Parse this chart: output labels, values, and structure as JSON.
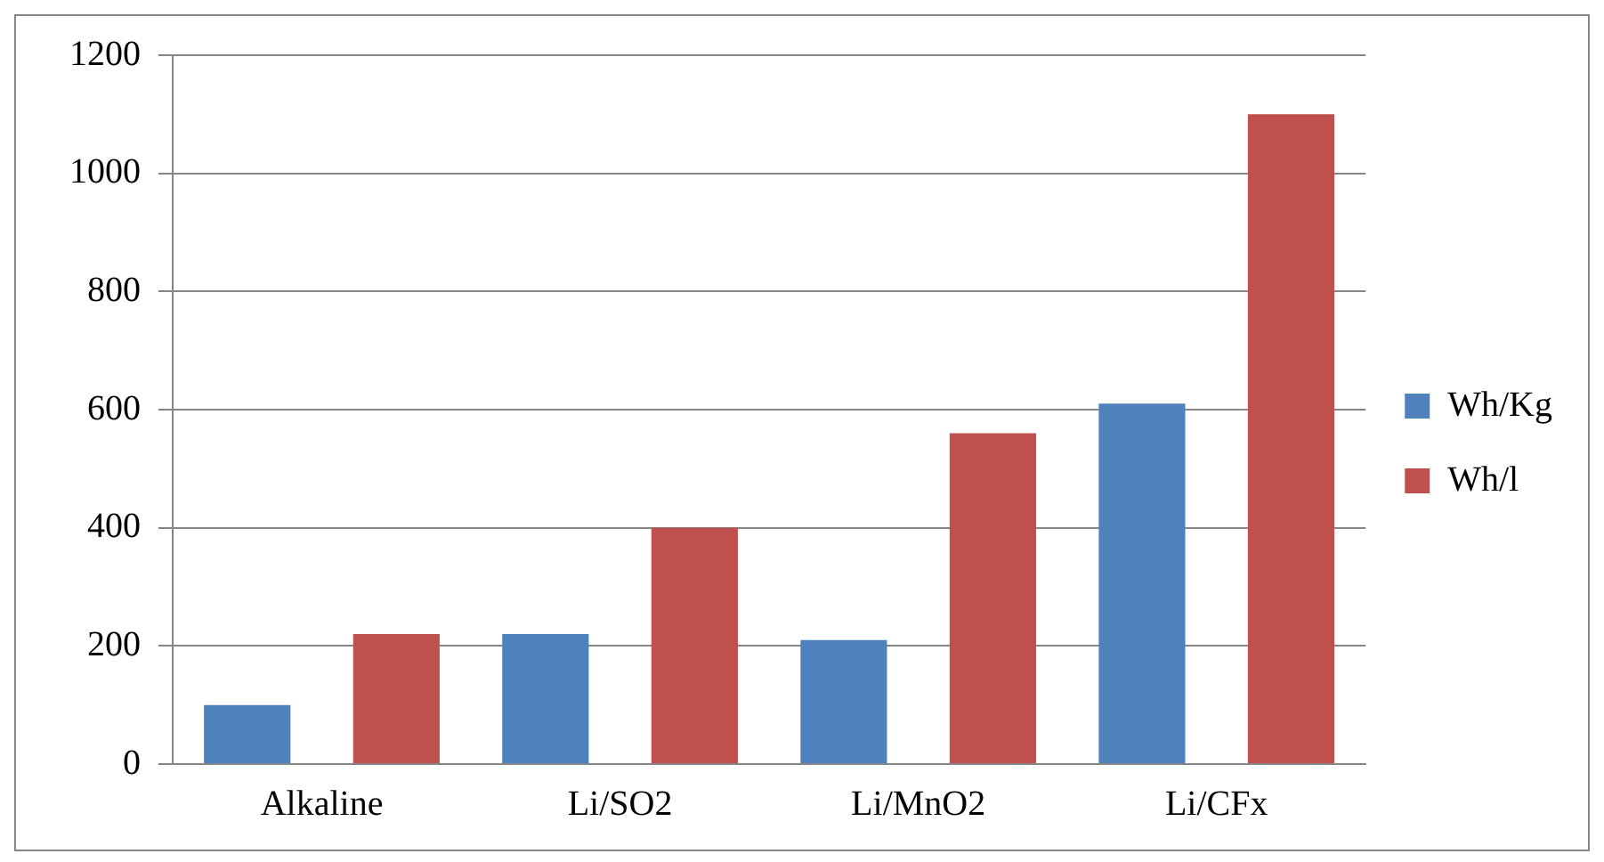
{
  "chart_data": {
    "type": "bar",
    "categories": [
      "Alkaline",
      "Li/SO2",
      "Li/MnO2",
      "Li/CFx"
    ],
    "series": [
      {
        "name": "Wh/Kg",
        "color": "#4f81bd",
        "values": [
          100,
          220,
          210,
          610
        ]
      },
      {
        "name": "Wh/l",
        "color": "#c0504d",
        "values": [
          220,
          400,
          560,
          1100
        ]
      }
    ],
    "ylim": [
      0,
      1200
    ],
    "yticks": [
      0,
      200,
      400,
      600,
      800,
      1000,
      1200
    ],
    "grid": "y",
    "legend": "right"
  }
}
